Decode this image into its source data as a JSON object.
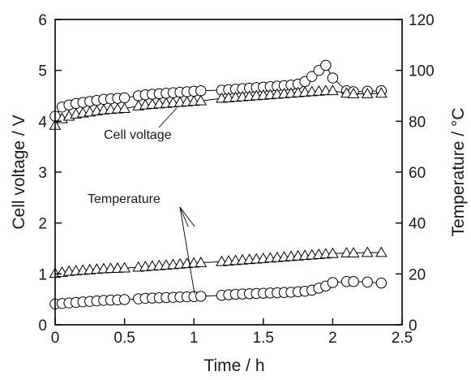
{
  "chart_data": {
    "type": "scatter",
    "xlabel": "Time / h",
    "ylabel_left": "Cell voltage / V",
    "ylabel_right": "Temperature / °C",
    "xlim": [
      0,
      2.5
    ],
    "ylim_left": [
      0,
      6
    ],
    "ylim_right": [
      0,
      120
    ],
    "x_ticks": [
      "0",
      "0.5",
      "1",
      "1.5",
      "2",
      "2.5"
    ],
    "y_ticks_left": [
      "0",
      "1",
      "2",
      "3",
      "4",
      "5",
      "6"
    ],
    "y_ticks_right": [
      "0",
      "20",
      "40",
      "60",
      "80",
      "100",
      "120"
    ],
    "grid": false,
    "annotations": [
      "Cell voltage",
      "Temperature"
    ],
    "series": [
      {
        "marker": "circle",
        "axis": "left",
        "annotation": "Cell voltage",
        "x": [
          0.0,
          0.05,
          0.1,
          0.15,
          0.2,
          0.25,
          0.3,
          0.35,
          0.4,
          0.45,
          0.5,
          0.6,
          0.65,
          0.7,
          0.75,
          0.8,
          0.85,
          0.9,
          0.95,
          1.0,
          1.05,
          1.2,
          1.25,
          1.3,
          1.35,
          1.4,
          1.45,
          1.5,
          1.55,
          1.6,
          1.65,
          1.7,
          1.75,
          1.8,
          1.85,
          1.9,
          1.95,
          2.0,
          2.1,
          2.15,
          2.25,
          2.35
        ],
        "values": [
          4.1,
          4.28,
          4.32,
          4.35,
          4.37,
          4.39,
          4.41,
          4.43,
          4.44,
          4.45,
          4.46,
          4.5,
          4.52,
          4.53,
          4.54,
          4.55,
          4.56,
          4.57,
          4.58,
          4.59,
          4.6,
          4.61,
          4.62,
          4.63,
          4.64,
          4.65,
          4.66,
          4.67,
          4.68,
          4.69,
          4.7,
          4.71,
          4.73,
          4.78,
          4.88,
          5.0,
          5.1,
          4.85,
          4.6,
          4.58,
          4.59,
          4.6
        ]
      },
      {
        "marker": "triangle",
        "axis": "left",
        "annotation": "Cell voltage",
        "x": [
          0.0,
          0.05,
          0.1,
          0.15,
          0.2,
          0.25,
          0.3,
          0.35,
          0.4,
          0.45,
          0.5,
          0.6,
          0.65,
          0.7,
          0.75,
          0.8,
          0.85,
          0.9,
          0.95,
          1.0,
          1.05,
          1.2,
          1.25,
          1.3,
          1.35,
          1.4,
          1.45,
          1.5,
          1.55,
          1.6,
          1.65,
          1.7,
          1.75,
          1.8,
          1.85,
          1.9,
          1.95,
          2.0,
          2.1,
          2.15,
          2.25,
          2.35
        ],
        "values": [
          3.92,
          4.05,
          4.1,
          4.14,
          4.16,
          4.18,
          4.2,
          4.22,
          4.23,
          4.24,
          4.25,
          4.3,
          4.32,
          4.33,
          4.34,
          4.35,
          4.36,
          4.37,
          4.38,
          4.39,
          4.4,
          4.45,
          4.46,
          4.47,
          4.48,
          4.49,
          4.5,
          4.51,
          4.52,
          4.53,
          4.54,
          4.55,
          4.56,
          4.57,
          4.58,
          4.59,
          4.6,
          4.6,
          4.55,
          4.54,
          4.54,
          4.55
        ]
      },
      {
        "marker": "triangle",
        "axis": "right",
        "annotation": "Temperature",
        "x": [
          0.0,
          0.05,
          0.1,
          0.15,
          0.2,
          0.25,
          0.3,
          0.35,
          0.4,
          0.45,
          0.5,
          0.6,
          0.65,
          0.7,
          0.75,
          0.8,
          0.85,
          0.9,
          0.95,
          1.0,
          1.05,
          1.2,
          1.25,
          1.3,
          1.35,
          1.4,
          1.45,
          1.5,
          1.55,
          1.6,
          1.65,
          1.7,
          1.75,
          1.8,
          1.85,
          1.9,
          1.95,
          2.0,
          2.1,
          2.15,
          2.25,
          2.35
        ],
        "values": [
          20.2,
          20.6,
          21.0,
          21.2,
          21.4,
          21.6,
          21.8,
          22.0,
          22.1,
          22.2,
          22.3,
          22.6,
          22.8,
          23.0,
          23.2,
          23.4,
          23.6,
          23.8,
          24.0,
          24.2,
          24.4,
          24.8,
          25.0,
          25.2,
          25.4,
          25.6,
          25.8,
          26.0,
          26.2,
          26.4,
          26.6,
          26.8,
          27.0,
          27.2,
          27.4,
          27.6,
          27.8,
          28.0,
          28.2,
          28.2,
          28.4,
          28.4
        ]
      },
      {
        "marker": "circle",
        "axis": "right",
        "annotation": "Temperature",
        "x": [
          0.0,
          0.05,
          0.1,
          0.15,
          0.2,
          0.25,
          0.3,
          0.35,
          0.4,
          0.45,
          0.5,
          0.6,
          0.65,
          0.7,
          0.75,
          0.8,
          0.85,
          0.9,
          0.95,
          1.0,
          1.05,
          1.2,
          1.25,
          1.3,
          1.35,
          1.4,
          1.45,
          1.5,
          1.55,
          1.6,
          1.65,
          1.7,
          1.75,
          1.8,
          1.85,
          1.9,
          1.95,
          2.0,
          2.1,
          2.15,
          2.25,
          2.35
        ],
        "values": [
          8.2,
          8.4,
          8.6,
          8.8,
          9.0,
          9.2,
          9.4,
          9.6,
          9.7,
          9.8,
          9.9,
          10.2,
          10.4,
          10.5,
          10.6,
          10.7,
          10.8,
          10.9,
          11.0,
          11.1,
          11.2,
          11.6,
          11.8,
          12.0,
          12.1,
          12.2,
          12.3,
          12.4,
          12.5,
          12.6,
          12.7,
          12.8,
          13.0,
          13.2,
          13.6,
          14.4,
          15.2,
          16.6,
          17.0,
          17.0,
          16.8,
          16.4
        ]
      }
    ]
  }
}
